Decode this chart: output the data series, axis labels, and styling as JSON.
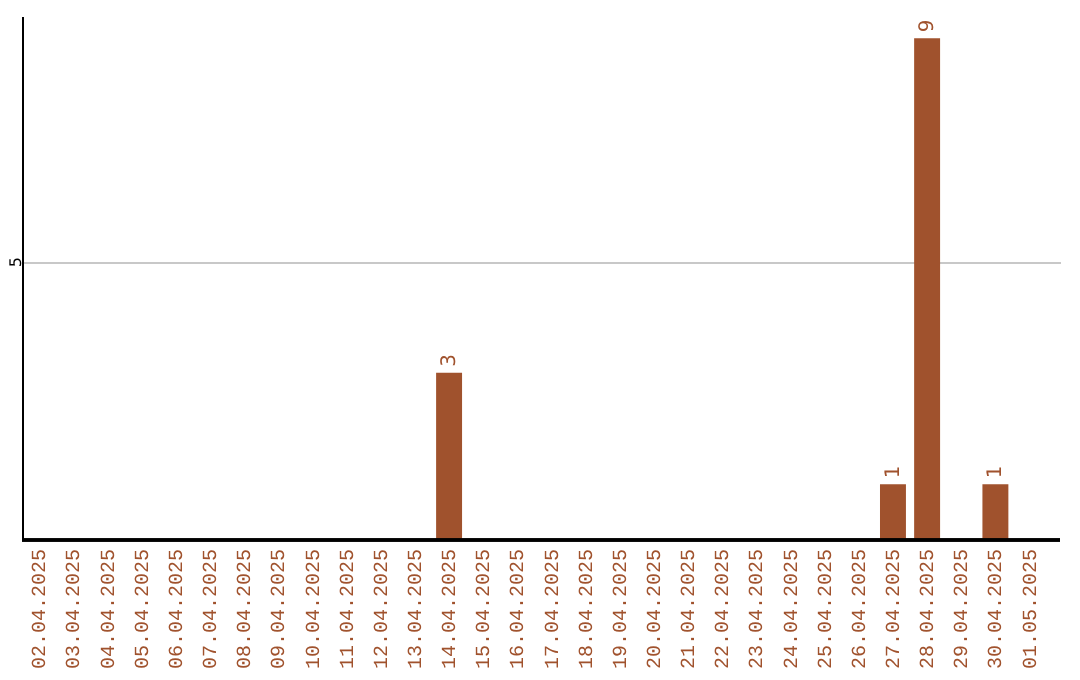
{
  "chart_data": {
    "type": "bar",
    "categories": [
      "02.04.2025",
      "03.04.2025",
      "04.04.2025",
      "05.04.2025",
      "06.04.2025",
      "07.04.2025",
      "08.04.2025",
      "09.04.2025",
      "10.04.2025",
      "11.04.2025",
      "12.04.2025",
      "13.04.2025",
      "14.04.2025",
      "15.04.2025",
      "16.04.2025",
      "17.04.2025",
      "18.04.2025",
      "19.04.2025",
      "20.04.2025",
      "21.04.2025",
      "22.04.2025",
      "23.04.2025",
      "24.04.2025",
      "25.04.2025",
      "26.04.2025",
      "27.04.2025",
      "28.04.2025",
      "29.04.2025",
      "30.04.2025",
      "01.05.2025"
    ],
    "values": [
      null,
      null,
      null,
      null,
      null,
      null,
      null,
      null,
      null,
      null,
      null,
      null,
      3,
      null,
      null,
      null,
      null,
      null,
      null,
      null,
      null,
      null,
      null,
      null,
      null,
      1,
      9,
      null,
      1,
      null
    ],
    "color": "#a0522d",
    "ylim": [
      0,
      9.4
    ],
    "yticks": [
      5
    ],
    "grid": "y",
    "data_labels": true
  }
}
